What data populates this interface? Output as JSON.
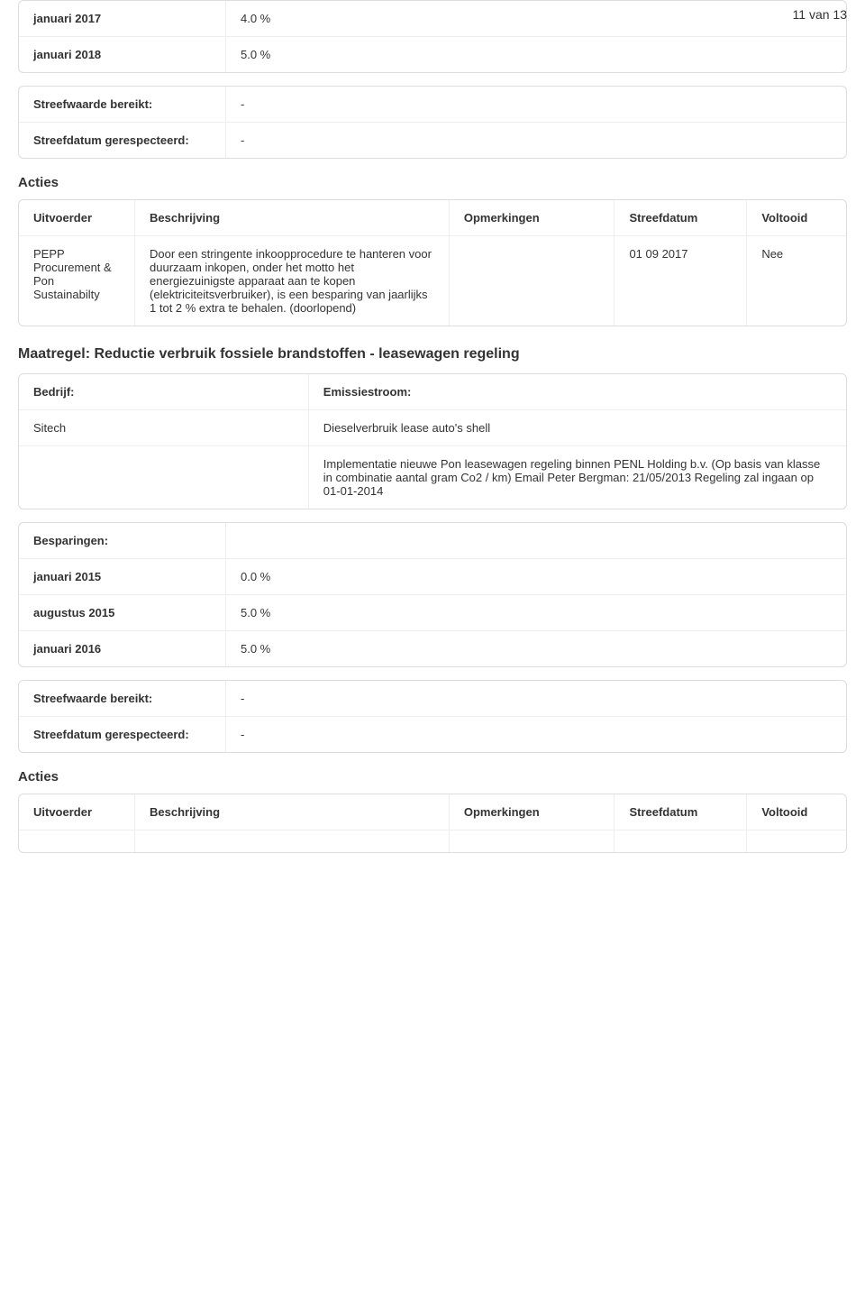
{
  "page_number": "11 van 13",
  "top_table": {
    "rows": [
      {
        "label": "januari 2017",
        "value": "4.0 %"
      },
      {
        "label": "januari 2018",
        "value": "5.0 %"
      }
    ]
  },
  "streef_table_1": {
    "rows": [
      {
        "label": "Streefwaarde bereikt:",
        "value": "-"
      },
      {
        "label": "Streefdatum gerespecteerd:",
        "value": "-"
      }
    ]
  },
  "acties_heading": "Acties",
  "acties_header": {
    "uitvoerder": "Uitvoerder",
    "beschrijving": "Beschrijving",
    "opmerkingen": "Opmerkingen",
    "streefdatum": "Streefdatum",
    "voltooid": "Voltooid"
  },
  "acties_rows_1": [
    {
      "uitvoerder": "PEPP Procurement & Pon Sustainabilty",
      "beschrijving": "Door een stringente inkoopprocedure te hanteren voor duurzaam inkopen, onder het motto het energiezuinigste apparaat aan te kopen (elektriciteitsverbruiker), is een besparing van jaarlijks 1 tot 2 % extra te behalen. (doorlopend)",
      "opmerkingen": "",
      "streefdatum": "01 09 2017",
      "voltooid": "Nee"
    }
  ],
  "maatregel_title": "Maatregel: Reductie verbruik fossiele brandstoffen - leasewagen regeling",
  "bedrijf_table": {
    "header": {
      "bedrijf": "Bedrijf:",
      "emissie": "Emissiestroom:"
    },
    "row1": {
      "bedrijf": "Sitech",
      "emissie": "Dieselverbruik lease auto's shell"
    },
    "row2": {
      "bedrijf": "",
      "emissie": "Implementatie nieuwe Pon leasewagen regeling binnen PENL Holding b.v. (Op basis van klasse in combinatie aantal gram Co2 / km) Email Peter Bergman: 21/05/2013 Regeling zal ingaan op 01-01-2014"
    }
  },
  "besparingen_table": {
    "header": "Besparingen:",
    "rows": [
      {
        "label": "januari 2015",
        "value": "0.0 %"
      },
      {
        "label": "augustus 2015",
        "value": "5.0 %"
      },
      {
        "label": "januari 2016",
        "value": "5.0 %"
      }
    ]
  },
  "streef_table_2": {
    "rows": [
      {
        "label": "Streefwaarde bereikt:",
        "value": "-"
      },
      {
        "label": "Streefdatum gerespecteerd:",
        "value": "-"
      }
    ]
  },
  "acties_heading_2": "Acties"
}
